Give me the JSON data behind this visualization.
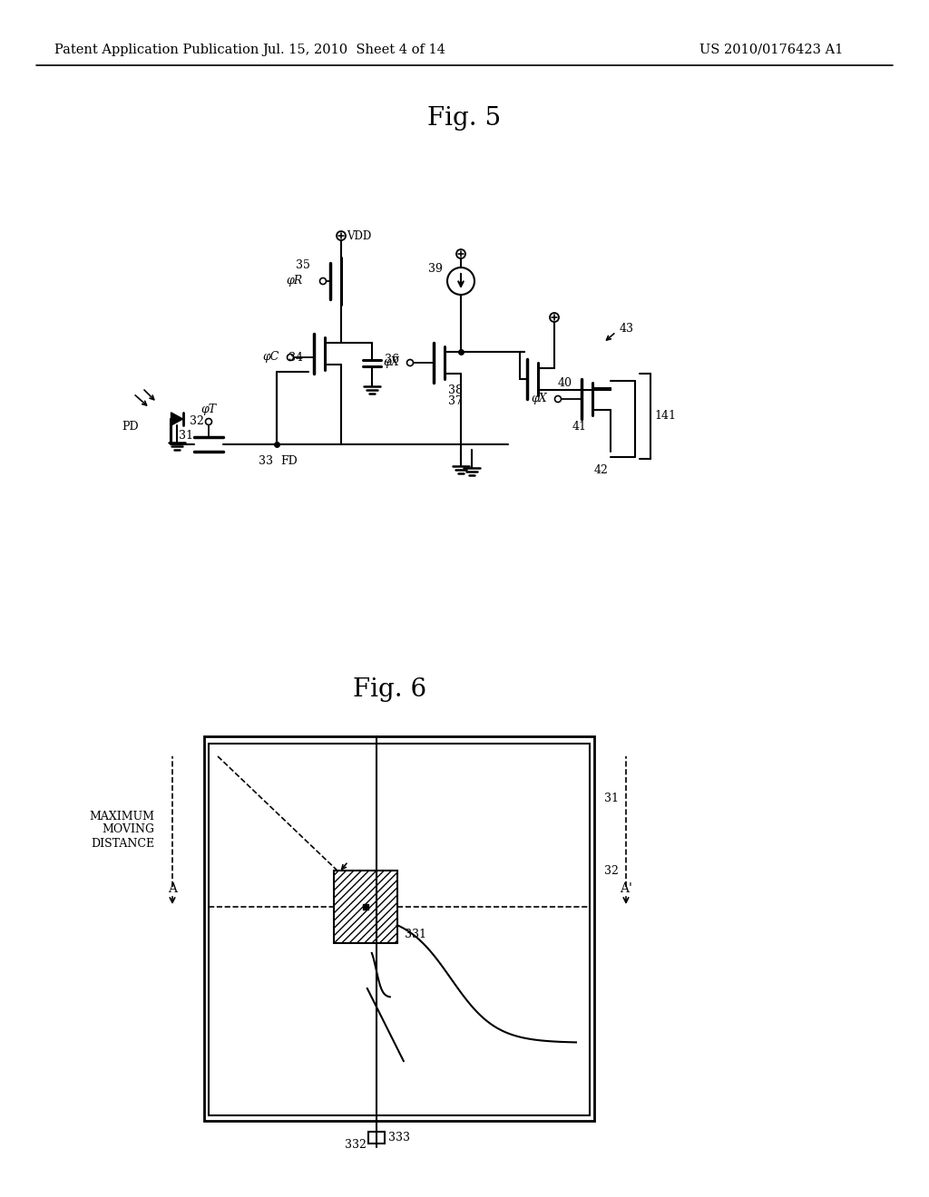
{
  "header_left": "Patent Application Publication",
  "header_mid": "Jul. 15, 2010  Sheet 4 of 14",
  "header_right": "US 2010/0176423 A1",
  "fig5_title": "Fig. 5",
  "fig6_title": "Fig. 6",
  "bg_color": "#ffffff",
  "line_color": "#000000",
  "header_fontsize": 10.5,
  "title_fontsize": 20
}
